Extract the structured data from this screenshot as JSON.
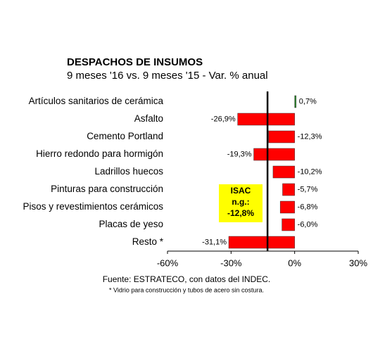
{
  "chart_data": {
    "type": "bar",
    "orientation": "horizontal",
    "title": "DESPACHOS DE INSUMOS",
    "subtitle": "9 meses '16 vs. 9 meses '15 - Var. % anual",
    "categories": [
      "Artículos sanitarios de cerámica",
      "Asfalto",
      "Cemento Portland",
      "Hierro redondo para hormigón",
      "Ladrillos huecos",
      "Pinturas para construcción",
      "Pisos y revestimientos cerámicos",
      "Placas de yeso",
      "Resto *"
    ],
    "values": [
      0.7,
      -26.9,
      -12.3,
      -19.3,
      -10.2,
      -5.7,
      -6.8,
      -6.0,
      -31.1
    ],
    "value_labels": [
      "0,7%",
      "-26,9%",
      "-12,3%",
      "-19,3%",
      "-10,2%",
      "-5,7%",
      "-6,8%",
      "-6,0%",
      "-31,1%"
    ],
    "colors": [
      "#2e8b2e",
      "#ff0000",
      "#ff0000",
      "#ff0000",
      "#ff0000",
      "#ff0000",
      "#ff0000",
      "#ff0000",
      "#ff0000"
    ],
    "xlim": [
      -60,
      30
    ],
    "xticks": [
      {
        "value": -60,
        "label": "-60%"
      },
      {
        "value": -30,
        "label": "-30%"
      },
      {
        "value": 0,
        "label": "0%"
      },
      {
        "value": 30,
        "label": "30%"
      }
    ],
    "reference": {
      "value": -12.8,
      "label": [
        "ISAC",
        "n.g.:",
        "-12,8%"
      ]
    },
    "source": "Fuente: ESTRATECO, con datos del INDEC.",
    "footnote": "* Vidrio para construcción y tubos de acero sin costura."
  }
}
